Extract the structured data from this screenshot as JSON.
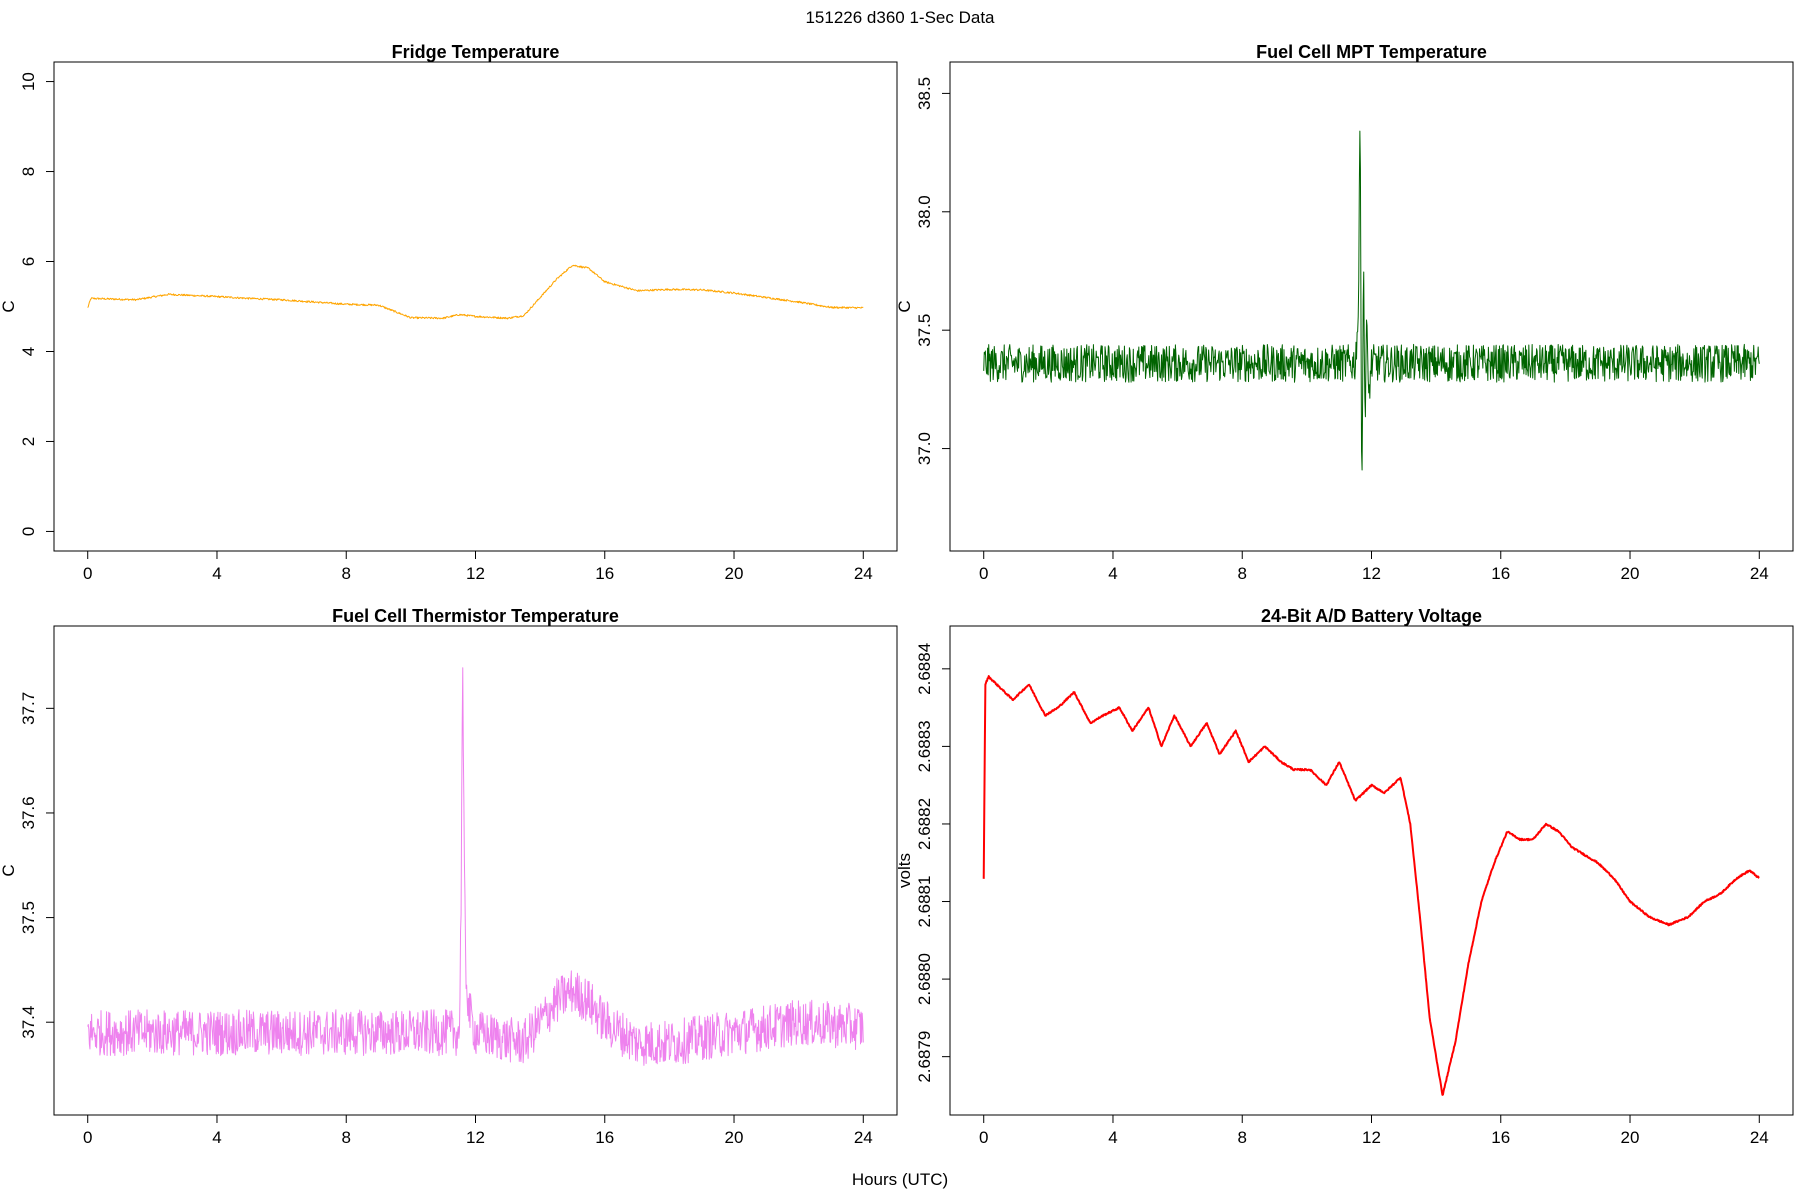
{
  "figure": {
    "title": "151226   d360   1-Sec Data",
    "xlabel": "Hours (UTC)"
  },
  "chart_data": [
    {
      "type": "line",
      "title": "Fridge Temperature",
      "xlabel": "",
      "ylabel": "C",
      "xlim": [
        0,
        24
      ],
      "ylim": [
        0,
        10
      ],
      "xticks": [
        0,
        4,
        8,
        12,
        16,
        20,
        24
      ],
      "yticks": [
        0,
        2,
        4,
        6,
        8,
        10
      ],
      "ytick_labels": [
        "0",
        "2",
        "4",
        "6",
        "8",
        "10"
      ],
      "color": "#FFA500",
      "noise": 0.02,
      "series": [
        {
          "x": [
            0,
            0.1,
            1.5,
            2.5,
            4,
            5,
            6,
            7,
            8,
            9,
            10,
            11,
            11.5,
            12,
            13,
            13.5,
            14,
            14.5,
            15,
            15.5,
            16,
            17,
            18,
            19,
            20,
            21,
            22,
            23,
            24
          ],
          "y": [
            4.97,
            5.18,
            5.15,
            5.27,
            5.22,
            5.18,
            5.15,
            5.1,
            5.05,
            5.03,
            4.75,
            4.74,
            4.82,
            4.78,
            4.74,
            4.8,
            5.2,
            5.6,
            5.92,
            5.85,
            5.55,
            5.35,
            5.38,
            5.37,
            5.3,
            5.2,
            5.1,
            4.98,
            4.97
          ]
        }
      ]
    },
    {
      "type": "line",
      "title": "Fuel Cell MPT Temperature",
      "xlabel": "",
      "ylabel": "C",
      "xlim": [
        0,
        24
      ],
      "ylim": [
        36.65,
        38.55
      ],
      "xticks": [
        0,
        4,
        8,
        12,
        16,
        20,
        24
      ],
      "yticks": [
        37.0,
        37.5,
        38.0,
        38.5
      ],
      "ytick_labels": [
        "37.0",
        "37.5",
        "38.0",
        "38.5"
      ],
      "color": "#006400",
      "noise": 0.08,
      "series": [
        {
          "x": [
            0,
            11.5,
            11.6,
            11.65,
            11.7,
            11.75,
            11.8,
            11.85,
            11.9,
            12,
            24
          ],
          "y": [
            37.36,
            37.36,
            37.6,
            38.52,
            36.7,
            37.82,
            37.1,
            37.6,
            37.2,
            37.36,
            37.36
          ]
        }
      ]
    },
    {
      "type": "line",
      "title": "Fuel Cell Thermistor Temperature",
      "xlabel": "",
      "ylabel": "C",
      "xlim": [
        0,
        24
      ],
      "ylim": [
        37.33,
        37.76
      ],
      "xticks": [
        0,
        4,
        8,
        12,
        16,
        20,
        24
      ],
      "yticks": [
        37.4,
        37.5,
        37.6,
        37.7
      ],
      "ytick_labels": [
        "37.4",
        "37.5",
        "37.6",
        "37.7"
      ],
      "color": "#EE82EE",
      "noise": 0.022,
      "series": [
        {
          "x": [
            0,
            4,
            8,
            11.5,
            11.55,
            11.6,
            11.65,
            11.7,
            11.8,
            11.9,
            12,
            13.5,
            14.5,
            15,
            15.5,
            16,
            17,
            18,
            20,
            22,
            24
          ],
          "y": [
            37.39,
            37.39,
            37.39,
            37.39,
            37.5,
            37.75,
            37.55,
            37.45,
            37.41,
            37.4,
            37.39,
            37.38,
            37.42,
            37.43,
            37.42,
            37.4,
            37.38,
            37.38,
            37.39,
            37.4,
            37.395
          ]
        }
      ]
    },
    {
      "type": "line",
      "title": "24-Bit A/D Battery Voltage",
      "xlabel": "",
      "ylabel": "volts",
      "xlim": [
        0,
        24
      ],
      "ylim": [
        2.68785,
        2.68843
      ],
      "xticks": [
        0,
        4,
        8,
        12,
        16,
        20,
        24
      ],
      "yticks": [
        2.6879,
        2.688,
        2.6881,
        2.6882,
        2.6883,
        2.6884
      ],
      "ytick_labels": [
        "2.6879",
        "2.6880",
        "2.6881",
        "2.6882",
        "2.6883",
        "2.6884"
      ],
      "color": "#FF0000",
      "noise": 1e-06,
      "series": [
        {
          "x": [
            0,
            0.05,
            0.15,
            0.4,
            0.9,
            1.4,
            1.9,
            2.3,
            2.8,
            3.3,
            3.7,
            4.2,
            4.6,
            5.1,
            5.5,
            5.9,
            6.4,
            6.9,
            7.3,
            7.8,
            8.2,
            8.7,
            9.2,
            9.6,
            10.1,
            10.6,
            11.0,
            11.5,
            12.0,
            12.4,
            12.9,
            13.2,
            13.5,
            13.8,
            14.2,
            14.6,
            15.0,
            15.4,
            15.8,
            16.2,
            16.6,
            17.0,
            17.4,
            17.8,
            18.2,
            18.6,
            19.0,
            19.5,
            20.0,
            20.6,
            21.2,
            21.8,
            22.3,
            22.8,
            23.3,
            23.7,
            24.0
          ],
          "y": [
            2.68813,
            2.68838,
            2.68839,
            2.68838,
            2.68836,
            2.68838,
            2.68834,
            2.68835,
            2.68837,
            2.68833,
            2.68834,
            2.68835,
            2.68832,
            2.68835,
            2.6883,
            2.68834,
            2.6883,
            2.68833,
            2.68829,
            2.68832,
            2.68828,
            2.6883,
            2.68828,
            2.68827,
            2.68827,
            2.68825,
            2.68828,
            2.68823,
            2.68825,
            2.68824,
            2.68826,
            2.6882,
            2.68808,
            2.68795,
            2.68785,
            2.68792,
            2.68802,
            2.6881,
            2.68815,
            2.68819,
            2.68818,
            2.68818,
            2.6882,
            2.68819,
            2.68817,
            2.68816,
            2.68815,
            2.68813,
            2.6881,
            2.68808,
            2.68807,
            2.68808,
            2.6881,
            2.68811,
            2.68813,
            2.68814,
            2.68813
          ]
        }
      ]
    }
  ]
}
